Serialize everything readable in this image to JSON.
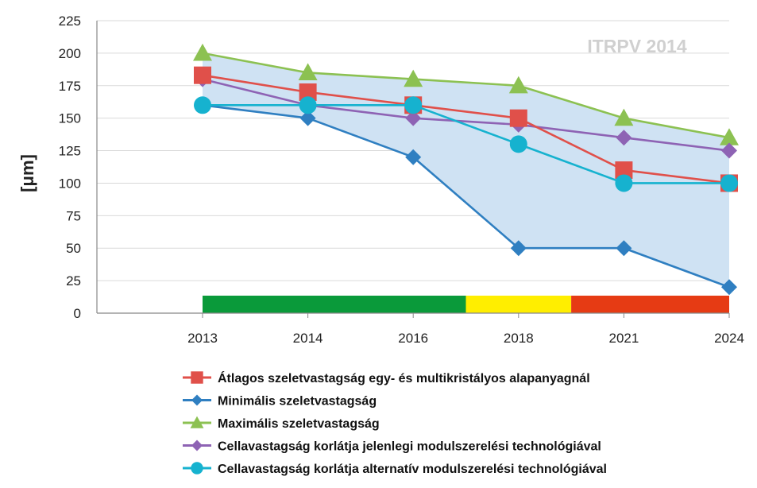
{
  "chart_data": {
    "type": "line",
    "title": "",
    "watermark": "ITRPV 2014",
    "xlabel": "",
    "ylabel": "[μm]",
    "categories": [
      "2013",
      "2014",
      "2016",
      "2018",
      "2021",
      "2024"
    ],
    "ylim": [
      0,
      225
    ],
    "yticks": [
      "0",
      "25",
      "50",
      "75",
      "100",
      "125",
      "150",
      "175",
      "200",
      "225"
    ],
    "grid": true,
    "legend_position": "bottom",
    "shaded_range": {
      "between": [
        "Maximális szeletvastagság",
        "Minimális szeletvastagság"
      ],
      "color": "#cfe2f3"
    },
    "status_bar": [
      {
        "from": 0,
        "to": 2.5,
        "color": "#0a9a3a"
      },
      {
        "from": 2.5,
        "to": 3.5,
        "color": "#ffee00"
      },
      {
        "from": 3.5,
        "to": 5,
        "color": "#e63b14"
      }
    ],
    "series": [
      {
        "name": "Átlagos szeletvastagság egy- és multikristályos alapanyagnál",
        "values": [
          183,
          170,
          160,
          150,
          110,
          100
        ],
        "color": "#e0504a",
        "marker": "square"
      },
      {
        "name": "Minimális szeletvastagság",
        "values": [
          160,
          150,
          120,
          50,
          50,
          20
        ],
        "color": "#2f7fc1",
        "marker": "diamond"
      },
      {
        "name": "Maximális szeletvastagság",
        "values": [
          200,
          185,
          180,
          175,
          150,
          135
        ],
        "color": "#8cc152",
        "marker": "triangle"
      },
      {
        "name": "Cellavastagság korlátja jelenlegi modulszerelési technológiával",
        "values": [
          180,
          160,
          150,
          145,
          135,
          125
        ],
        "color": "#8e63b4",
        "marker": "diamond"
      },
      {
        "name": "Cellavastagság korlátja alternatív modulszerelési technológiával",
        "values": [
          160,
          160,
          160,
          130,
          100,
          100
        ],
        "color": "#16b2cf",
        "marker": "circle"
      }
    ]
  }
}
